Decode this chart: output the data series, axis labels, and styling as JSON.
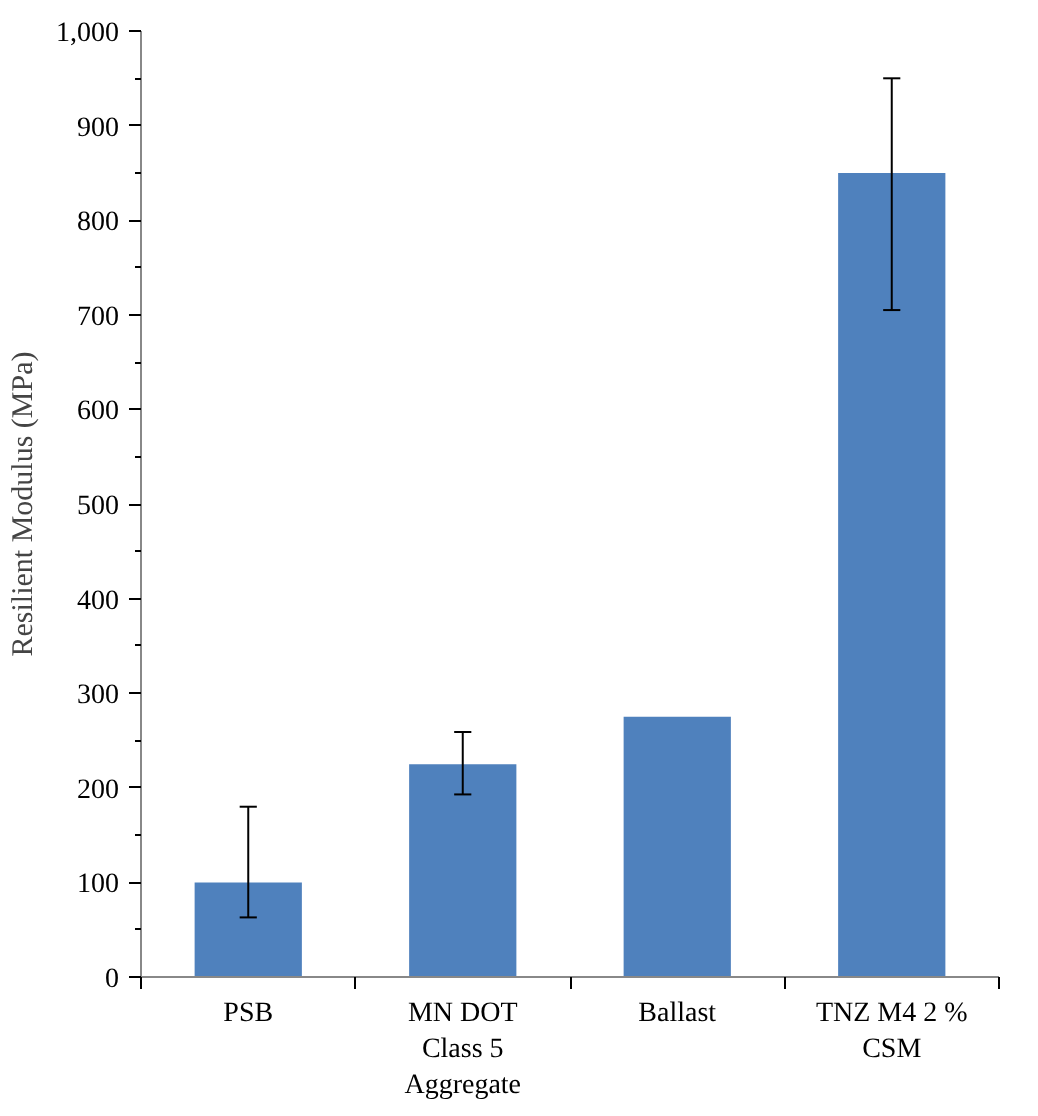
{
  "chart_data": {
    "type": "bar",
    "ylabel": "Resilient Modulus (MPa)",
    "categories": [
      "PSB",
      "MN DOT\nClass 5\nAggregate",
      "Ballast",
      "TNZ M4 2 %\nCSM"
    ],
    "values": [
      100,
      225,
      275,
      850
    ],
    "errors": [
      [
        63,
        180
      ],
      [
        193,
        259
      ],
      null,
      [
        705,
        950
      ]
    ],
    "color": "#4f81bd",
    "ylim": [
      0,
      1000
    ],
    "yticks": [
      0,
      100,
      200,
      300,
      400,
      500,
      600,
      700,
      800,
      900,
      {
        "value": 1000,
        "label": "1,000"
      }
    ],
    "grid": false
  }
}
